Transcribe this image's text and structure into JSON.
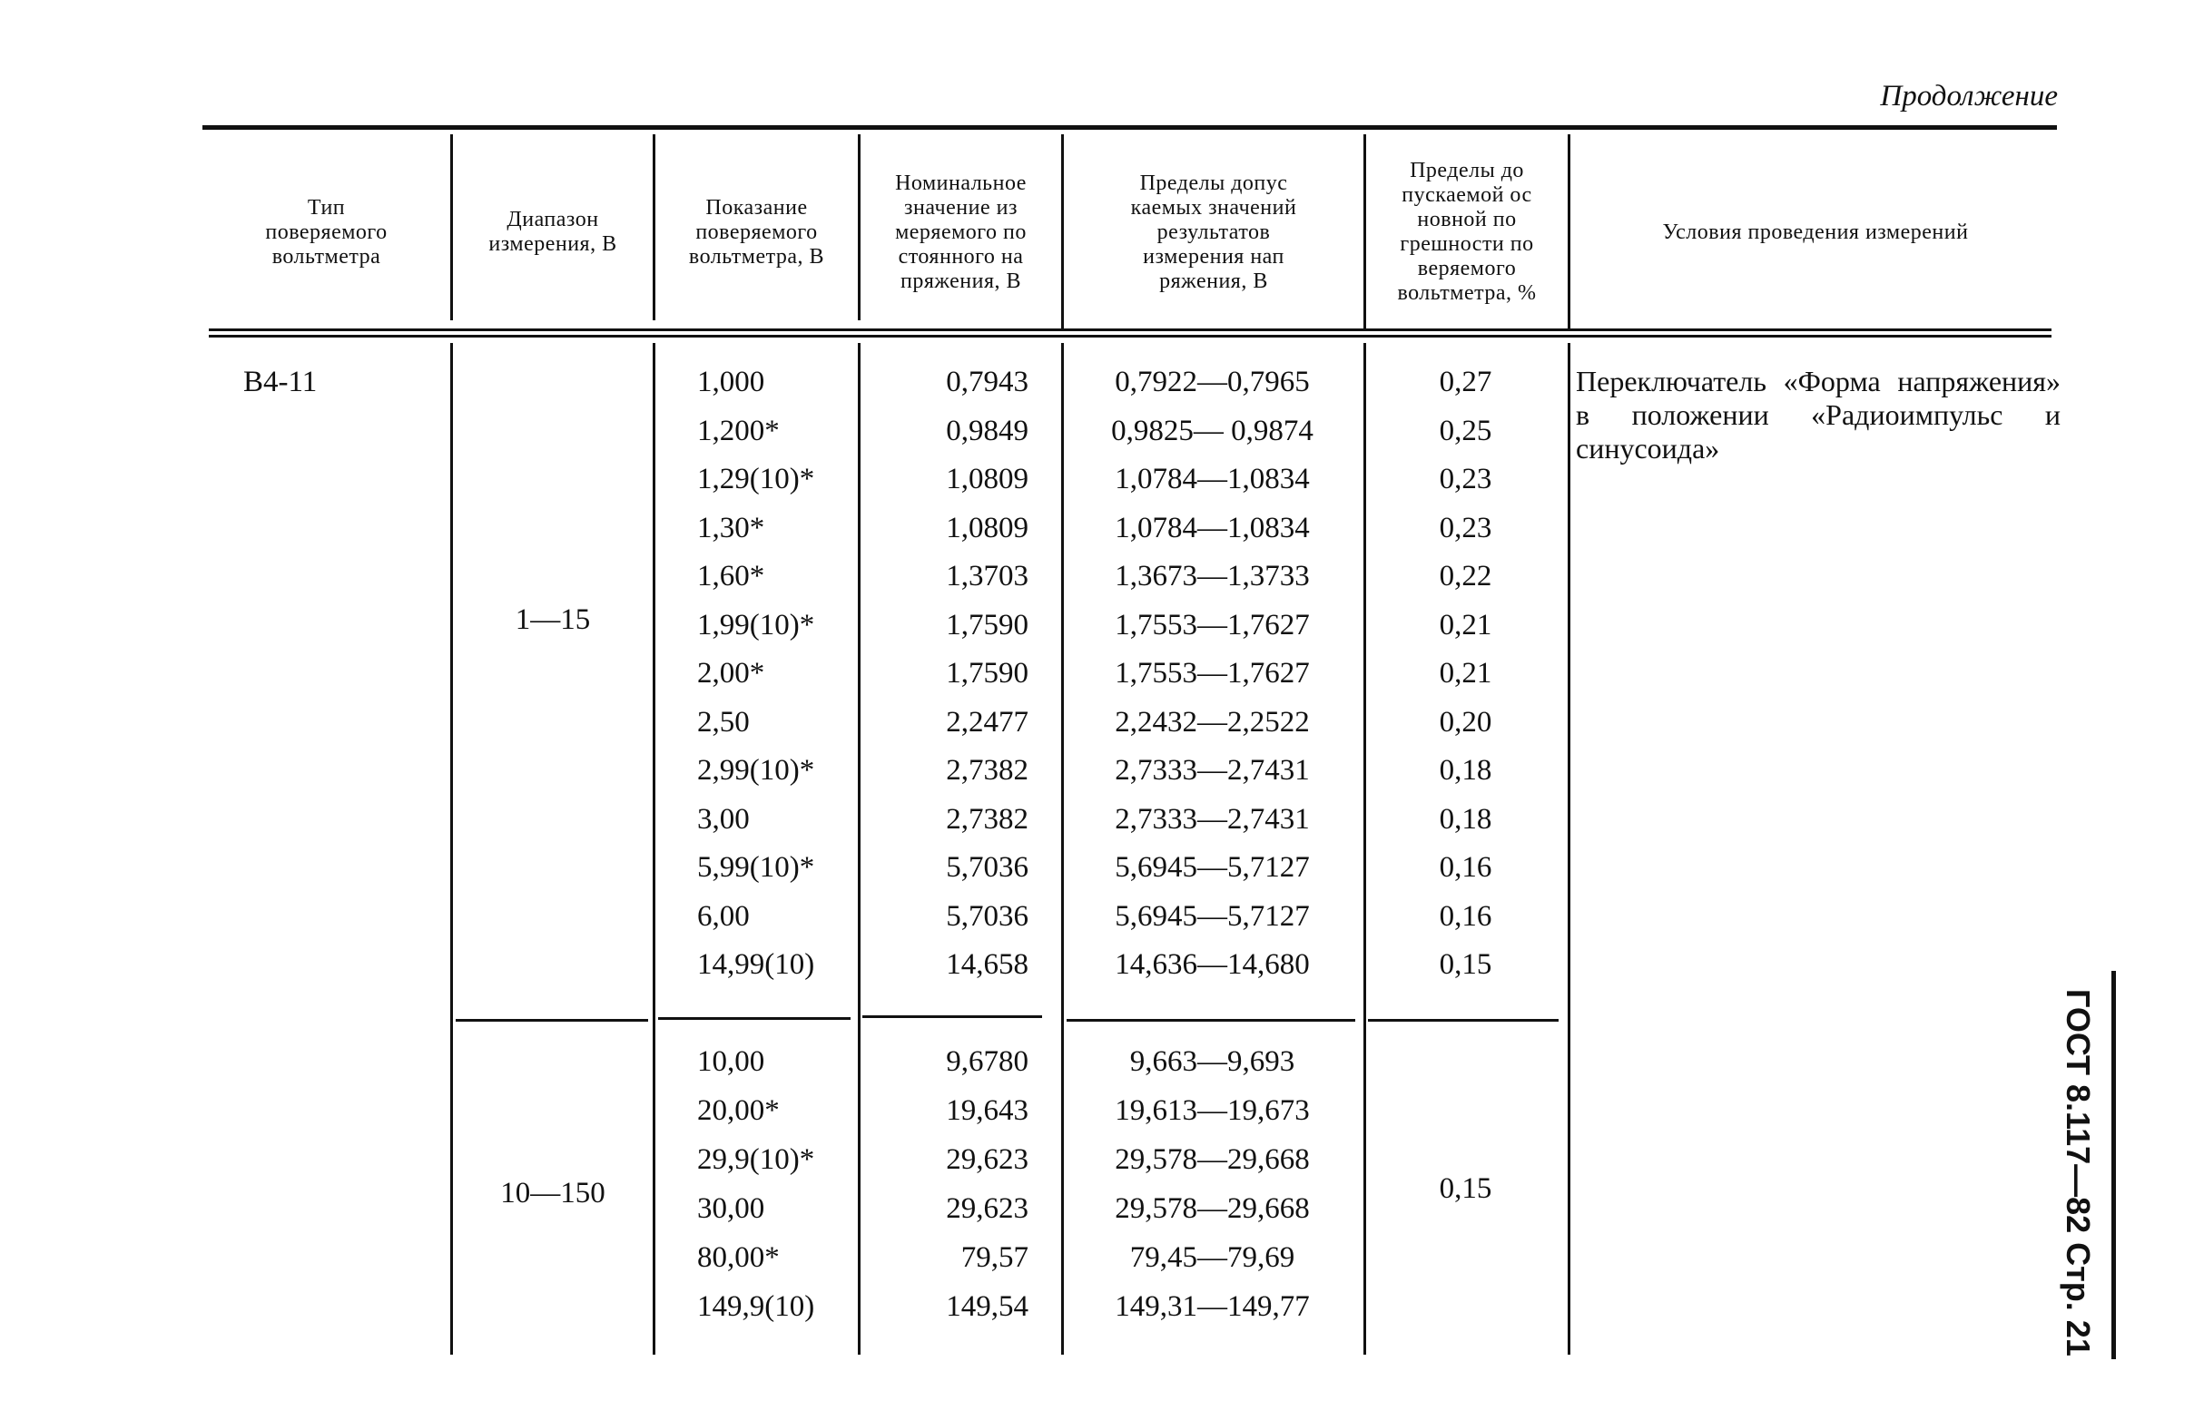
{
  "continuation": "Продолжение",
  "headers": [
    "Тип\nповеряемого\nвольтметра",
    "Диапазон\nизмерения, В",
    "Показание\nповеряемого\nвольтметра, В",
    "Номинальное\nзначение из\nмеряемого по\nстоянного на\nпряжения, В",
    "Пределы допус\nкаемых значений\nрезультатов\nизмерения нап\nряжения, В",
    "Пределы до\nпускаемой ос\nновной по\nгрешности по\nверяемого\nвольтметра, %",
    "Условия проведения измерений"
  ],
  "voltmeter_type": "В4-11",
  "conditions": "Переключатель «Форма напряжения» в положении «Радиоимпульс и синусоида»",
  "sections": [
    {
      "range": "1—15",
      "rows": [
        [
          "1,000",
          "0,7943",
          "0,7922—0,7965",
          "0,27"
        ],
        [
          "1,200*",
          "0,9849",
          "0,9825— 0,9874",
          "0,25"
        ],
        [
          "1,29(10)*",
          "1,0809",
          "1,0784—1,0834",
          "0,23"
        ],
        [
          "1,30*",
          "1,0809",
          "1,0784—1,0834",
          "0,23"
        ],
        [
          "1,60*",
          "1,3703",
          "1,3673—1,3733",
          "0,22"
        ],
        [
          "1,99(10)*",
          "1,7590",
          "1,7553—1,7627",
          "0,21"
        ],
        [
          "2,00*",
          "1,7590",
          "1,7553—1,7627",
          "0,21"
        ],
        [
          "2,50",
          "2,2477",
          "2,2432—2,2522",
          "0,20"
        ],
        [
          "2,99(10)*",
          "2,7382",
          "2,7333—2,7431",
          "0,18"
        ],
        [
          "3,00",
          "2,7382",
          "2,7333—2,7431",
          "0,18"
        ],
        [
          "5,99(10)*",
          "5,7036",
          "5,6945—5,7127",
          "0,16"
        ],
        [
          "6,00",
          "5,7036",
          "5,6945—5,7127",
          "0,16"
        ],
        [
          "14,99(10)",
          "14,658",
          "14,636—14,680",
          "0,15"
        ]
      ]
    },
    {
      "range": "10—150",
      "error": "0,15",
      "rows": [
        [
          "10,00",
          "9,6780",
          "9,663—9,693"
        ],
        [
          "20,00*",
          "19,643",
          "19,613—19,673"
        ],
        [
          "29,9(10)*",
          "29,623",
          "29,578—29,668"
        ],
        [
          "30,00",
          "29,623",
          "29,578—29,668"
        ],
        [
          "80,00*",
          "79,57",
          "79,45—79,69"
        ],
        [
          "149,9(10)",
          "149,54",
          "149,31—149,77"
        ]
      ]
    }
  ],
  "side_caption": "ГОСТ 8.117—82 Стр. 21"
}
